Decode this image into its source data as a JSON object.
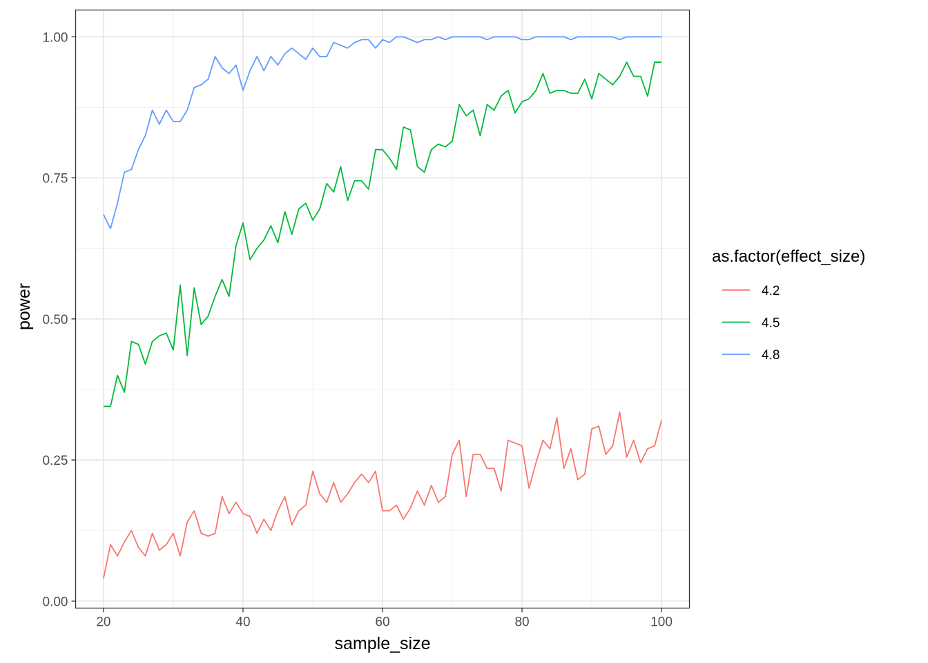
{
  "chart_data": {
    "type": "line",
    "title": "",
    "xlabel": "sample_size",
    "ylabel": "power",
    "xlim": [
      16,
      104
    ],
    "ylim": [
      -0.0125,
      1.0475
    ],
    "x_ticks": [
      20,
      40,
      60,
      80,
      100
    ],
    "x_tick_labels": [
      "20",
      "40",
      "60",
      "80",
      "100"
    ],
    "y_ticks": [
      0,
      0.25,
      0.5,
      0.75,
      1
    ],
    "y_tick_labels": [
      "0.00",
      "0.25",
      "0.50",
      "0.75",
      "1.00"
    ],
    "grid": true,
    "legend": {
      "title": "as.factor(effect_size)",
      "position": "right"
    },
    "x_start": 20,
    "x_step": 1,
    "series": [
      {
        "name": "4.2",
        "color": "#F8766D",
        "values": [
          0.04,
          0.1,
          0.08,
          0.105,
          0.125,
          0.095,
          0.08,
          0.12,
          0.09,
          0.1,
          0.12,
          0.08,
          0.14,
          0.16,
          0.12,
          0.115,
          0.12,
          0.185,
          0.155,
          0.175,
          0.155,
          0.15,
          0.12,
          0.145,
          0.125,
          0.16,
          0.185,
          0.135,
          0.16,
          0.17,
          0.23,
          0.19,
          0.175,
          0.21,
          0.175,
          0.19,
          0.21,
          0.225,
          0.21,
          0.23,
          0.16,
          0.16,
          0.17,
          0.145,
          0.165,
          0.195,
          0.17,
          0.205,
          0.175,
          0.185,
          0.26,
          0.285,
          0.185,
          0.26,
          0.26,
          0.235,
          0.235,
          0.195,
          0.285,
          0.28,
          0.275,
          0.2,
          0.245,
          0.285,
          0.27,
          0.325,
          0.235,
          0.27,
          0.215,
          0.225,
          0.305,
          0.31,
          0.26,
          0.275,
          0.335,
          0.255,
          0.285,
          0.245,
          0.27,
          0.275,
          0.32
        ]
      },
      {
        "name": "4.5",
        "color": "#00BA38",
        "values": [
          0.345,
          0.345,
          0.4,
          0.37,
          0.46,
          0.455,
          0.42,
          0.46,
          0.47,
          0.475,
          0.445,
          0.56,
          0.435,
          0.555,
          0.49,
          0.505,
          0.54,
          0.57,
          0.54,
          0.63,
          0.67,
          0.605,
          0.625,
          0.64,
          0.665,
          0.635,
          0.69,
          0.65,
          0.695,
          0.705,
          0.675,
          0.695,
          0.74,
          0.725,
          0.77,
          0.71,
          0.745,
          0.745,
          0.73,
          0.8,
          0.8,
          0.785,
          0.765,
          0.84,
          0.835,
          0.77,
          0.76,
          0.8,
          0.81,
          0.805,
          0.815,
          0.88,
          0.86,
          0.87,
          0.825,
          0.88,
          0.87,
          0.895,
          0.905,
          0.865,
          0.885,
          0.89,
          0.905,
          0.935,
          0.9,
          0.905,
          0.905,
          0.9,
          0.9,
          0.925,
          0.89,
          0.935,
          0.925,
          0.915,
          0.93,
          0.955,
          0.93,
          0.93,
          0.895,
          0.955,
          0.955
        ]
      },
      {
        "name": "4.8",
        "color": "#619CFF",
        "values": [
          0.685,
          0.66,
          0.705,
          0.76,
          0.765,
          0.8,
          0.825,
          0.87,
          0.845,
          0.87,
          0.85,
          0.85,
          0.87,
          0.91,
          0.915,
          0.925,
          0.965,
          0.945,
          0.935,
          0.95,
          0.905,
          0.94,
          0.965,
          0.94,
          0.965,
          0.95,
          0.97,
          0.98,
          0.97,
          0.96,
          0.98,
          0.965,
          0.965,
          0.99,
          0.985,
          0.98,
          0.99,
          0.995,
          0.995,
          0.98,
          0.995,
          0.99,
          1.0,
          1.0,
          0.995,
          0.99,
          0.995,
          0.995,
          1.0,
          0.995,
          1.0,
          1.0,
          1.0,
          1.0,
          1.0,
          0.995,
          1.0,
          1.0,
          1.0,
          1.0,
          0.995,
          0.995,
          1.0,
          1.0,
          1.0,
          1.0,
          1.0,
          0.995,
          1.0,
          1.0,
          1.0,
          1.0,
          1.0,
          1.0,
          0.995,
          1.0,
          1.0,
          1.0,
          1.0,
          1.0,
          1.0
        ]
      }
    ]
  }
}
